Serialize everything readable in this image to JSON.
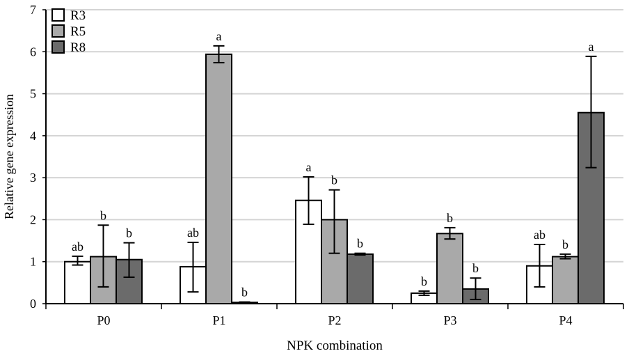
{
  "chart_data": {
    "type": "bar",
    "xlabel": "NPK combination",
    "ylabel": "Relative gene expression",
    "ylim": [
      0,
      7
    ],
    "yticks": [
      0,
      1,
      2,
      3,
      4,
      5,
      6,
      7
    ],
    "grid": true,
    "legend_position": "top-left",
    "categories": [
      "P0",
      "P1",
      "P2",
      "P3",
      "P4"
    ],
    "series": [
      {
        "name": "R3",
        "color": "#ffffff",
        "values": [
          1.0,
          0.88,
          2.46,
          0.25,
          0.9
        ],
        "err_low": [
          0.92,
          0.28,
          1.89,
          0.2,
          0.4
        ],
        "err_high": [
          1.13,
          1.46,
          3.02,
          0.3,
          1.41
        ],
        "letters": [
          "ab",
          "ab",
          "a",
          "b",
          "ab"
        ]
      },
      {
        "name": "R5",
        "color": "#a9a9a9",
        "values": [
          1.12,
          5.94,
          2.0,
          1.67,
          1.12
        ],
        "err_low": [
          0.4,
          5.74,
          1.2,
          1.54,
          1.07
        ],
        "err_high": [
          1.87,
          6.14,
          2.71,
          1.81,
          1.18
        ],
        "letters": [
          "b",
          "a",
          "b",
          "b",
          "b"
        ]
      },
      {
        "name": "R8",
        "color": "#6b6b6b",
        "values": [
          1.05,
          0.03,
          1.18,
          0.35,
          4.55
        ],
        "err_low": [
          0.63,
          0.02,
          1.16,
          0.1,
          3.24
        ],
        "err_high": [
          1.45,
          0.04,
          1.2,
          0.61,
          5.89
        ],
        "letters": [
          "b",
          "b",
          "b",
          "b",
          "a"
        ]
      }
    ]
  }
}
